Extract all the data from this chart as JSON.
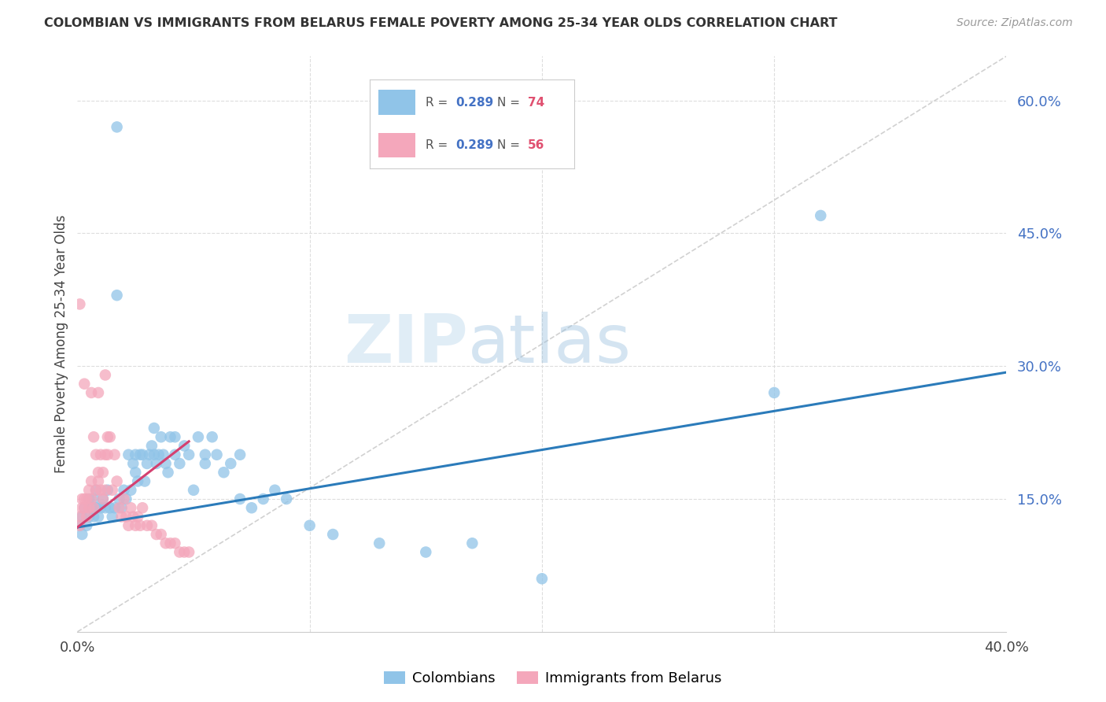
{
  "title": "COLOMBIAN VS IMMIGRANTS FROM BELARUS FEMALE POVERTY AMONG 25-34 YEAR OLDS CORRELATION CHART",
  "source": "Source: ZipAtlas.com",
  "ylabel": "Female Poverty Among 25-34 Year Olds",
  "xlim": [
    0.0,
    0.4
  ],
  "ylim": [
    0.0,
    0.65
  ],
  "yticks": [
    0.15,
    0.3,
    0.45,
    0.6
  ],
  "ytick_labels": [
    "15.0%",
    "30.0%",
    "45.0%",
    "60.0%"
  ],
  "xtick_labels": [
    "0.0%",
    "",
    "",
    "",
    "40.0%"
  ],
  "blue_color": "#90c4e8",
  "pink_color": "#f4a7bb",
  "blue_line_color": "#2b7bba",
  "pink_line_color": "#d44070",
  "diag_color": "#cccccc",
  "grid_color": "#dddddd",
  "R_blue": "0.289",
  "N_blue": "74",
  "R_pink": "0.289",
  "N_pink": "56",
  "watermark_zip": "ZIP",
  "watermark_atlas": "atlas",
  "blue_trend_x0": 0.0,
  "blue_trend_y0": 0.118,
  "blue_trend_x1": 0.4,
  "blue_trend_y1": 0.293,
  "pink_trend_x0": 0.0,
  "pink_trend_y0": 0.118,
  "pink_trend_x1": 0.048,
  "pink_trend_y1": 0.215,
  "col_scatter_x": [
    0.001,
    0.002,
    0.002,
    0.003,
    0.004,
    0.005,
    0.005,
    0.006,
    0.007,
    0.007,
    0.008,
    0.008,
    0.009,
    0.01,
    0.011,
    0.012,
    0.013,
    0.014,
    0.015,
    0.016,
    0.017,
    0.018,
    0.019,
    0.02,
    0.021,
    0.022,
    0.023,
    0.024,
    0.025,
    0.026,
    0.027,
    0.028,
    0.029,
    0.03,
    0.031,
    0.032,
    0.033,
    0.034,
    0.035,
    0.036,
    0.037,
    0.038,
    0.039,
    0.04,
    0.042,
    0.044,
    0.046,
    0.048,
    0.05,
    0.052,
    0.055,
    0.058,
    0.06,
    0.063,
    0.066,
    0.07,
    0.075,
    0.08,
    0.085,
    0.09,
    0.1,
    0.11,
    0.13,
    0.15,
    0.17,
    0.2,
    0.017,
    0.025,
    0.033,
    0.042,
    0.055,
    0.07,
    0.32,
    0.3
  ],
  "col_scatter_y": [
    0.12,
    0.13,
    0.11,
    0.14,
    0.12,
    0.15,
    0.13,
    0.14,
    0.13,
    0.15,
    0.14,
    0.16,
    0.13,
    0.14,
    0.15,
    0.14,
    0.16,
    0.14,
    0.13,
    0.14,
    0.57,
    0.15,
    0.14,
    0.16,
    0.15,
    0.2,
    0.16,
    0.19,
    0.18,
    0.17,
    0.2,
    0.2,
    0.17,
    0.19,
    0.2,
    0.21,
    0.2,
    0.19,
    0.2,
    0.22,
    0.2,
    0.19,
    0.18,
    0.22,
    0.2,
    0.19,
    0.21,
    0.2,
    0.16,
    0.22,
    0.19,
    0.22,
    0.2,
    0.18,
    0.19,
    0.15,
    0.14,
    0.15,
    0.16,
    0.15,
    0.12,
    0.11,
    0.1,
    0.09,
    0.1,
    0.06,
    0.38,
    0.2,
    0.23,
    0.22,
    0.2,
    0.2,
    0.47,
    0.27
  ],
  "bel_scatter_x": [
    0.001,
    0.001,
    0.002,
    0.002,
    0.003,
    0.003,
    0.004,
    0.004,
    0.005,
    0.005,
    0.006,
    0.006,
    0.007,
    0.007,
    0.008,
    0.008,
    0.009,
    0.009,
    0.01,
    0.01,
    0.011,
    0.011,
    0.012,
    0.012,
    0.013,
    0.013,
    0.014,
    0.015,
    0.016,
    0.017,
    0.018,
    0.019,
    0.02,
    0.021,
    0.022,
    0.023,
    0.024,
    0.025,
    0.026,
    0.027,
    0.028,
    0.03,
    0.032,
    0.034,
    0.036,
    0.038,
    0.04,
    0.042,
    0.044,
    0.046,
    0.048,
    0.001,
    0.003,
    0.006,
    0.009,
    0.012
  ],
  "bel_scatter_y": [
    0.13,
    0.12,
    0.14,
    0.15,
    0.15,
    0.14,
    0.13,
    0.15,
    0.14,
    0.16,
    0.15,
    0.17,
    0.14,
    0.22,
    0.16,
    0.2,
    0.18,
    0.17,
    0.16,
    0.2,
    0.15,
    0.18,
    0.16,
    0.2,
    0.2,
    0.22,
    0.22,
    0.16,
    0.2,
    0.17,
    0.14,
    0.13,
    0.15,
    0.13,
    0.12,
    0.14,
    0.13,
    0.12,
    0.13,
    0.12,
    0.14,
    0.12,
    0.12,
    0.11,
    0.11,
    0.1,
    0.1,
    0.1,
    0.09,
    0.09,
    0.09,
    0.37,
    0.28,
    0.27,
    0.27,
    0.29
  ]
}
